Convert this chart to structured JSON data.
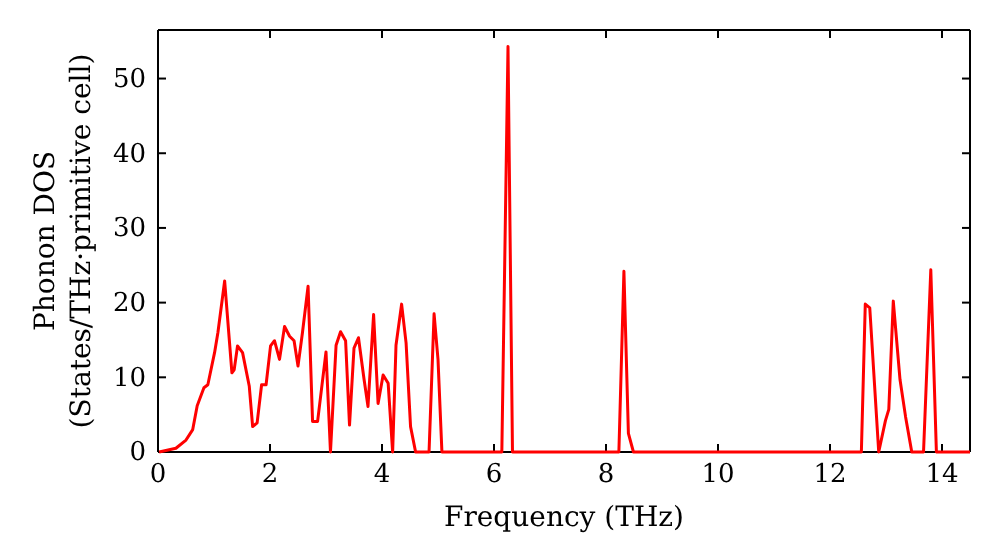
{
  "chart_data": {
    "type": "line",
    "xlabel": "Frequency (THz)",
    "ylabel": "Phonon DOS\n(States/THz·primitive cell)",
    "xlim": [
      0,
      14.5
    ],
    "ylim": [
      0,
      56.5
    ],
    "xticks": [
      0,
      2,
      4,
      6,
      8,
      10,
      12,
      14
    ],
    "yticks": [
      0,
      10,
      20,
      30,
      40,
      50
    ],
    "marker": "none",
    "line_style": "solid",
    "series": [
      {
        "color": "#ff0000",
        "x": [
          0.02,
          0.32,
          0.5,
          0.62,
          0.7,
          0.82,
          0.89,
          1.01,
          1.07,
          1.19,
          1.32,
          1.36,
          1.42,
          1.51,
          1.63,
          1.69,
          1.77,
          1.85,
          1.93,
          2.01,
          2.08,
          2.17,
          2.26,
          2.35,
          2.43,
          2.5,
          2.58,
          2.68,
          2.76,
          2.85,
          3.0,
          3.08,
          3.18,
          3.26,
          3.35,
          3.42,
          3.5,
          3.58,
          3.68,
          3.75,
          3.85,
          3.93,
          4.02,
          4.11,
          4.19,
          4.25,
          4.35,
          4.43,
          4.51,
          4.6,
          4.84,
          4.93,
          5.0,
          5.07,
          6.14,
          6.25,
          6.33,
          8.23,
          8.32,
          8.4,
          8.49,
          12.56,
          12.63,
          12.71,
          12.87,
          12.99,
          13.05,
          13.13,
          13.25,
          13.35,
          13.46,
          13.67,
          13.8,
          13.9,
          14.5
        ],
        "values": [
          0,
          0.5,
          1.6,
          3,
          6.2,
          8.6,
          9,
          13.3,
          16,
          22.9,
          10.6,
          11,
          14.2,
          13.3,
          8.8,
          3.4,
          3.9,
          9,
          9,
          14.2,
          14.9,
          12.4,
          16.8,
          15.5,
          14.9,
          11.5,
          16,
          22.2,
          4.1,
          4.1,
          13.4,
          0,
          14.3,
          16.1,
          14.9,
          3.6,
          13.9,
          15.3,
          9.7,
          6.1,
          18.4,
          6.5,
          10.3,
          9.2,
          0,
          14.3,
          19.8,
          14.6,
          3.4,
          0,
          0,
          18.5,
          12.4,
          0,
          0,
          54.3,
          0,
          0,
          24.2,
          2.5,
          0,
          0,
          19.8,
          19.3,
          0,
          4.2,
          5.7,
          20.2,
          9.7,
          4.7,
          0,
          0,
          24.4,
          0,
          0
        ]
      }
    ]
  }
}
